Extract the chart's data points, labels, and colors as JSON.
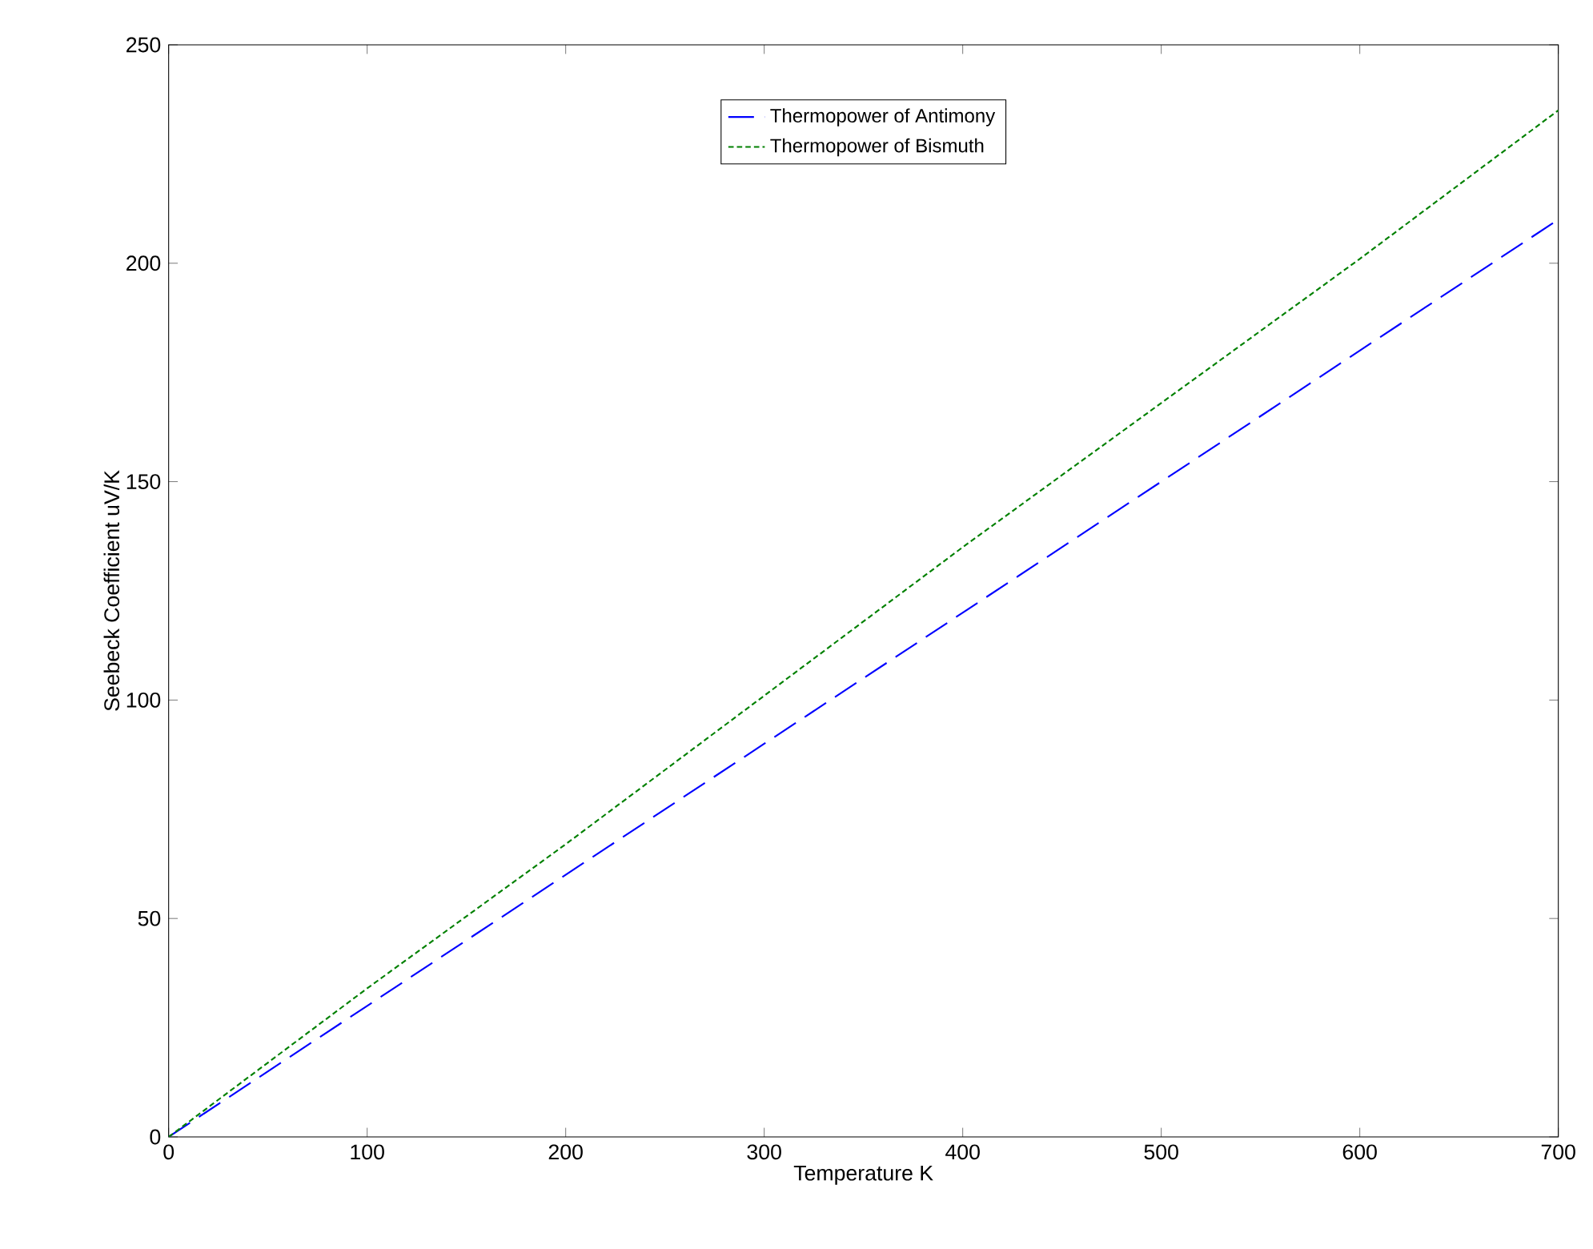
{
  "chart_data": {
    "type": "line",
    "xlabel": "Temperature K",
    "ylabel": "Seebeck Coefficient uV/K",
    "x": [
      0,
      100,
      200,
      300,
      400,
      500,
      600,
      700
    ],
    "series": [
      {
        "name": "Thermopower of Antimony",
        "color": "#0000ff",
        "line_style": "dashed",
        "values": [
          0,
          30,
          60,
          90,
          120,
          150,
          180,
          210
        ]
      },
      {
        "name": "Thermopower of Bismuth",
        "color": "#008000",
        "line_style": "dotted",
        "values": [
          0,
          34,
          67,
          101,
          135,
          168,
          201,
          235
        ]
      }
    ],
    "xlim": [
      0,
      700
    ],
    "ylim": [
      0,
      250
    ],
    "xticks": [
      0,
      100,
      200,
      300,
      400,
      500,
      600,
      700
    ],
    "yticks": [
      0,
      50,
      100,
      150,
      200,
      250
    ],
    "legend": "top",
    "grid": false
  }
}
